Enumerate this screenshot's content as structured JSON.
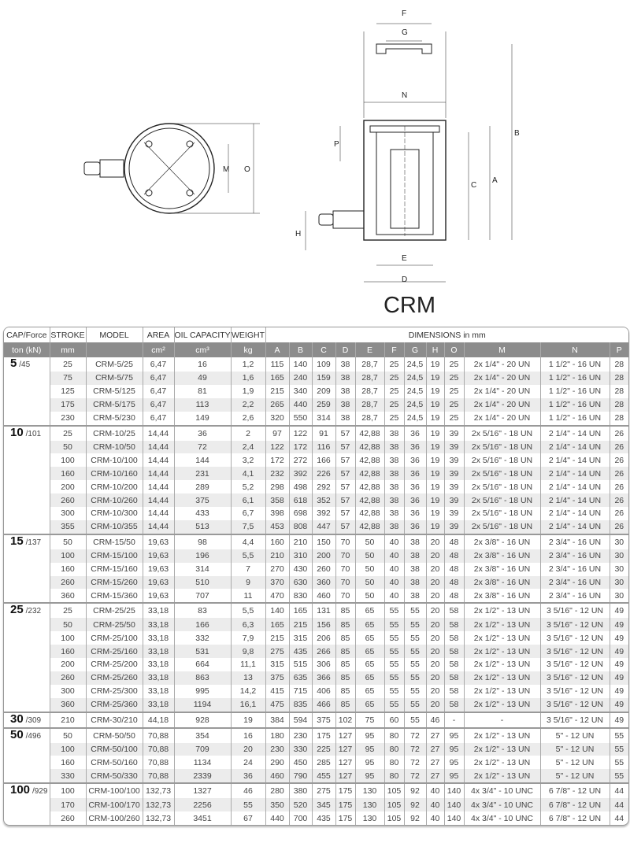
{
  "title": "CRM",
  "drawing": {
    "labels": [
      "F",
      "G",
      "N",
      "P",
      "B",
      "A",
      "C",
      "H",
      "E",
      "D",
      "M",
      "O"
    ]
  },
  "table": {
    "header1": [
      "CAP/Force",
      "STROKE",
      "MODEL",
      "AREA",
      "OIL CAPACITY",
      "WEIGHT",
      "DIMENSIONS in mm"
    ],
    "header2": [
      "ton (kN)",
      "mm",
      "",
      "cm²",
      "cm³",
      "kg",
      "A",
      "B",
      "C",
      "D",
      "E",
      "F",
      "G",
      "H",
      "O",
      "M",
      "N",
      "P"
    ],
    "groups": [
      {
        "cap": "5",
        "kn": "/45",
        "rows": [
          [
            "25",
            "CRM-5/25",
            "6,47",
            "16",
            "1,2",
            "115",
            "140",
            "109",
            "38",
            "28,7",
            "25",
            "24,5",
            "19",
            "25",
            "2x 1/4\" - 20 UN",
            "1 1/2\" - 16 UN",
            "28"
          ],
          [
            "75",
            "CRM-5/75",
            "6,47",
            "49",
            "1,6",
            "165",
            "240",
            "159",
            "38",
            "28,7",
            "25",
            "24,5",
            "19",
            "25",
            "2x 1/4\" - 20 UN",
            "1 1/2\" - 16 UN",
            "28"
          ],
          [
            "125",
            "CRM-5/125",
            "6,47",
            "81",
            "1,9",
            "215",
            "340",
            "209",
            "38",
            "28,7",
            "25",
            "24,5",
            "19",
            "25",
            "2x 1/4\" - 20 UN",
            "1 1/2\" - 16 UN",
            "28"
          ],
          [
            "175",
            "CRM-5/175",
            "6,47",
            "113",
            "2,2",
            "265",
            "440",
            "259",
            "38",
            "28,7",
            "25",
            "24,5",
            "19",
            "25",
            "2x 1/4\" - 20 UN",
            "1 1/2\" - 16 UN",
            "28"
          ],
          [
            "230",
            "CRM-5/230",
            "6,47",
            "149",
            "2,6",
            "320",
            "550",
            "314",
            "38",
            "28,7",
            "25",
            "24,5",
            "19",
            "25",
            "2x 1/4\" - 20 UN",
            "1 1/2\" - 16 UN",
            "28"
          ]
        ]
      },
      {
        "cap": "10",
        "kn": "/101",
        "rows": [
          [
            "25",
            "CRM-10/25",
            "14,44",
            "36",
            "2",
            "97",
            "122",
            "91",
            "57",
            "42,88",
            "38",
            "36",
            "19",
            "39",
            "2x 5/16\" - 18 UN",
            "2 1/4\" - 14 UN",
            "26"
          ],
          [
            "50",
            "CRM-10/50",
            "14,44",
            "72",
            "2,4",
            "122",
            "172",
            "116",
            "57",
            "42,88",
            "38",
            "36",
            "19",
            "39",
            "2x 5/16\" - 18 UN",
            "2 1/4\" - 14 UN",
            "26"
          ],
          [
            "100",
            "CRM-10/100",
            "14,44",
            "144",
            "3,2",
            "172",
            "272",
            "166",
            "57",
            "42,88",
            "38",
            "36",
            "19",
            "39",
            "2x 5/16\" - 18 UN",
            "2 1/4\" - 14 UN",
            "26"
          ],
          [
            "160",
            "CRM-10/160",
            "14,44",
            "231",
            "4,1",
            "232",
            "392",
            "226",
            "57",
            "42,88",
            "38",
            "36",
            "19",
            "39",
            "2x 5/16\" - 18 UN",
            "2 1/4\" - 14 UN",
            "26"
          ],
          [
            "200",
            "CRM-10/200",
            "14,44",
            "289",
            "5,2",
            "298",
            "498",
            "292",
            "57",
            "42,88",
            "38",
            "36",
            "19",
            "39",
            "2x 5/16\" - 18 UN",
            "2 1/4\" - 14 UN",
            "26"
          ],
          [
            "260",
            "CRM-10/260",
            "14,44",
            "375",
            "6,1",
            "358",
            "618",
            "352",
            "57",
            "42,88",
            "38",
            "36",
            "19",
            "39",
            "2x 5/16\" - 18 UN",
            "2 1/4\" - 14 UN",
            "26"
          ],
          [
            "300",
            "CRM-10/300",
            "14,44",
            "433",
            "6,7",
            "398",
            "698",
            "392",
            "57",
            "42,88",
            "38",
            "36",
            "19",
            "39",
            "2x 5/16\" - 18 UN",
            "2 1/4\" - 14 UN",
            "26"
          ],
          [
            "355",
            "CRM-10/355",
            "14,44",
            "513",
            "7,5",
            "453",
            "808",
            "447",
            "57",
            "42,88",
            "38",
            "36",
            "19",
            "39",
            "2x 5/16\" - 18 UN",
            "2 1/4\" - 14 UN",
            "26"
          ]
        ]
      },
      {
        "cap": "15",
        "kn": "/137",
        "rows": [
          [
            "50",
            "CRM-15/50",
            "19,63",
            "98",
            "4,4",
            "160",
            "210",
            "150",
            "70",
            "50",
            "40",
            "38",
            "20",
            "48",
            "2x 3/8\" - 16 UN",
            "2 3/4\" - 16 UN",
            "30"
          ],
          [
            "100",
            "CRM-15/100",
            "19,63",
            "196",
            "5,5",
            "210",
            "310",
            "200",
            "70",
            "50",
            "40",
            "38",
            "20",
            "48",
            "2x 3/8\" - 16 UN",
            "2 3/4\" - 16 UN",
            "30"
          ],
          [
            "160",
            "CRM-15/160",
            "19,63",
            "314",
            "7",
            "270",
            "430",
            "260",
            "70",
            "50",
            "40",
            "38",
            "20",
            "48",
            "2x 3/8\" - 16 UN",
            "2 3/4\" - 16 UN",
            "30"
          ],
          [
            "260",
            "CRM-15/260",
            "19,63",
            "510",
            "9",
            "370",
            "630",
            "360",
            "70",
            "50",
            "40",
            "38",
            "20",
            "48",
            "2x 3/8\" - 16 UN",
            "2 3/4\" - 16 UN",
            "30"
          ],
          [
            "360",
            "CRM-15/360",
            "19,63",
            "707",
            "11",
            "470",
            "830",
            "460",
            "70",
            "50",
            "40",
            "38",
            "20",
            "48",
            "2x 3/8\" - 16 UN",
            "2 3/4\" - 16 UN",
            "30"
          ]
        ]
      },
      {
        "cap": "25",
        "kn": "/232",
        "rows": [
          [
            "25",
            "CRM-25/25",
            "33,18",
            "83",
            "5,5",
            "140",
            "165",
            "131",
            "85",
            "65",
            "55",
            "55",
            "20",
            "58",
            "2x 1/2\" - 13 UN",
            "3 5/16\" - 12 UN",
            "49"
          ],
          [
            "50",
            "CRM-25/50",
            "33,18",
            "166",
            "6,3",
            "165",
            "215",
            "156",
            "85",
            "65",
            "55",
            "55",
            "20",
            "58",
            "2x 1/2\" - 13 UN",
            "3 5/16\" - 12 UN",
            "49"
          ],
          [
            "100",
            "CRM-25/100",
            "33,18",
            "332",
            "7,9",
            "215",
            "315",
            "206",
            "85",
            "65",
            "55",
            "55",
            "20",
            "58",
            "2x 1/2\" - 13 UN",
            "3 5/16\" - 12 UN",
            "49"
          ],
          [
            "160",
            "CRM-25/160",
            "33,18",
            "531",
            "9,8",
            "275",
            "435",
            "266",
            "85",
            "65",
            "55",
            "55",
            "20",
            "58",
            "2x 1/2\" - 13 UN",
            "3 5/16\" - 12 UN",
            "49"
          ],
          [
            "200",
            "CRM-25/200",
            "33,18",
            "664",
            "11,1",
            "315",
            "515",
            "306",
            "85",
            "65",
            "55",
            "55",
            "20",
            "58",
            "2x 1/2\" - 13 UN",
            "3 5/16\" - 12 UN",
            "49"
          ],
          [
            "260",
            "CRM-25/260",
            "33,18",
            "863",
            "13",
            "375",
            "635",
            "366",
            "85",
            "65",
            "55",
            "55",
            "20",
            "58",
            "2x 1/2\" - 13 UN",
            "3 5/16\" - 12 UN",
            "49"
          ],
          [
            "300",
            "CRM-25/300",
            "33,18",
            "995",
            "14,2",
            "415",
            "715",
            "406",
            "85",
            "65",
            "55",
            "55",
            "20",
            "58",
            "2x 1/2\" - 13 UN",
            "3 5/16\" - 12 UN",
            "49"
          ],
          [
            "360",
            "CRM-25/360",
            "33,18",
            "1194",
            "16,1",
            "475",
            "835",
            "466",
            "85",
            "65",
            "55",
            "55",
            "20",
            "58",
            "2x 1/2\" - 13 UN",
            "3 5/16\" - 12 UN",
            "49"
          ]
        ]
      },
      {
        "cap": "30",
        "kn": "/309",
        "rows": [
          [
            "210",
            "CRM-30/210",
            "44,18",
            "928",
            "19",
            "384",
            "594",
            "375",
            "102",
            "75",
            "60",
            "55",
            "46",
            "-",
            "-",
            "3 5/16\" - 12 UN",
            "49"
          ]
        ]
      },
      {
        "cap": "50",
        "kn": "/496",
        "rows": [
          [
            "50",
            "CRM-50/50",
            "70,88",
            "354",
            "16",
            "180",
            "230",
            "175",
            "127",
            "95",
            "80",
            "72",
            "27",
            "95",
            "2x 1/2\" - 13 UN",
            "5\" - 12 UN",
            "55"
          ],
          [
            "100",
            "CRM-50/100",
            "70,88",
            "709",
            "20",
            "230",
            "330",
            "225",
            "127",
            "95",
            "80",
            "72",
            "27",
            "95",
            "2x 1/2\" - 13 UN",
            "5\" - 12 UN",
            "55"
          ],
          [
            "160",
            "CRM-50/160",
            "70,88",
            "1134",
            "24",
            "290",
            "450",
            "285",
            "127",
            "95",
            "80",
            "72",
            "27",
            "95",
            "2x 1/2\" - 13 UN",
            "5\" - 12 UN",
            "55"
          ],
          [
            "330",
            "CRM-50/330",
            "70,88",
            "2339",
            "36",
            "460",
            "790",
            "455",
            "127",
            "95",
            "80",
            "72",
            "27",
            "95",
            "2x 1/2\" - 13 UN",
            "5\" - 12 UN",
            "55"
          ]
        ]
      },
      {
        "cap": "100",
        "kn": "/929",
        "rows": [
          [
            "100",
            "CRM-100/100",
            "132,73",
            "1327",
            "46",
            "280",
            "380",
            "275",
            "175",
            "130",
            "105",
            "92",
            "40",
            "140",
            "4x 3/4\" - 10 UNC",
            "6 7/8\" - 12 UN",
            "44"
          ],
          [
            "170",
            "CRM-100/170",
            "132,73",
            "2256",
            "55",
            "350",
            "520",
            "345",
            "175",
            "130",
            "105",
            "92",
            "40",
            "140",
            "4x 3/4\" - 10 UNC",
            "6 7/8\" - 12 UN",
            "44"
          ],
          [
            "260",
            "CRM-100/260",
            "132,73",
            "3451",
            "67",
            "440",
            "700",
            "435",
            "175",
            "130",
            "105",
            "92",
            "40",
            "140",
            "4x 3/4\" - 10 UNC",
            "6 7/8\" - 12 UN",
            "44"
          ]
        ]
      }
    ]
  }
}
